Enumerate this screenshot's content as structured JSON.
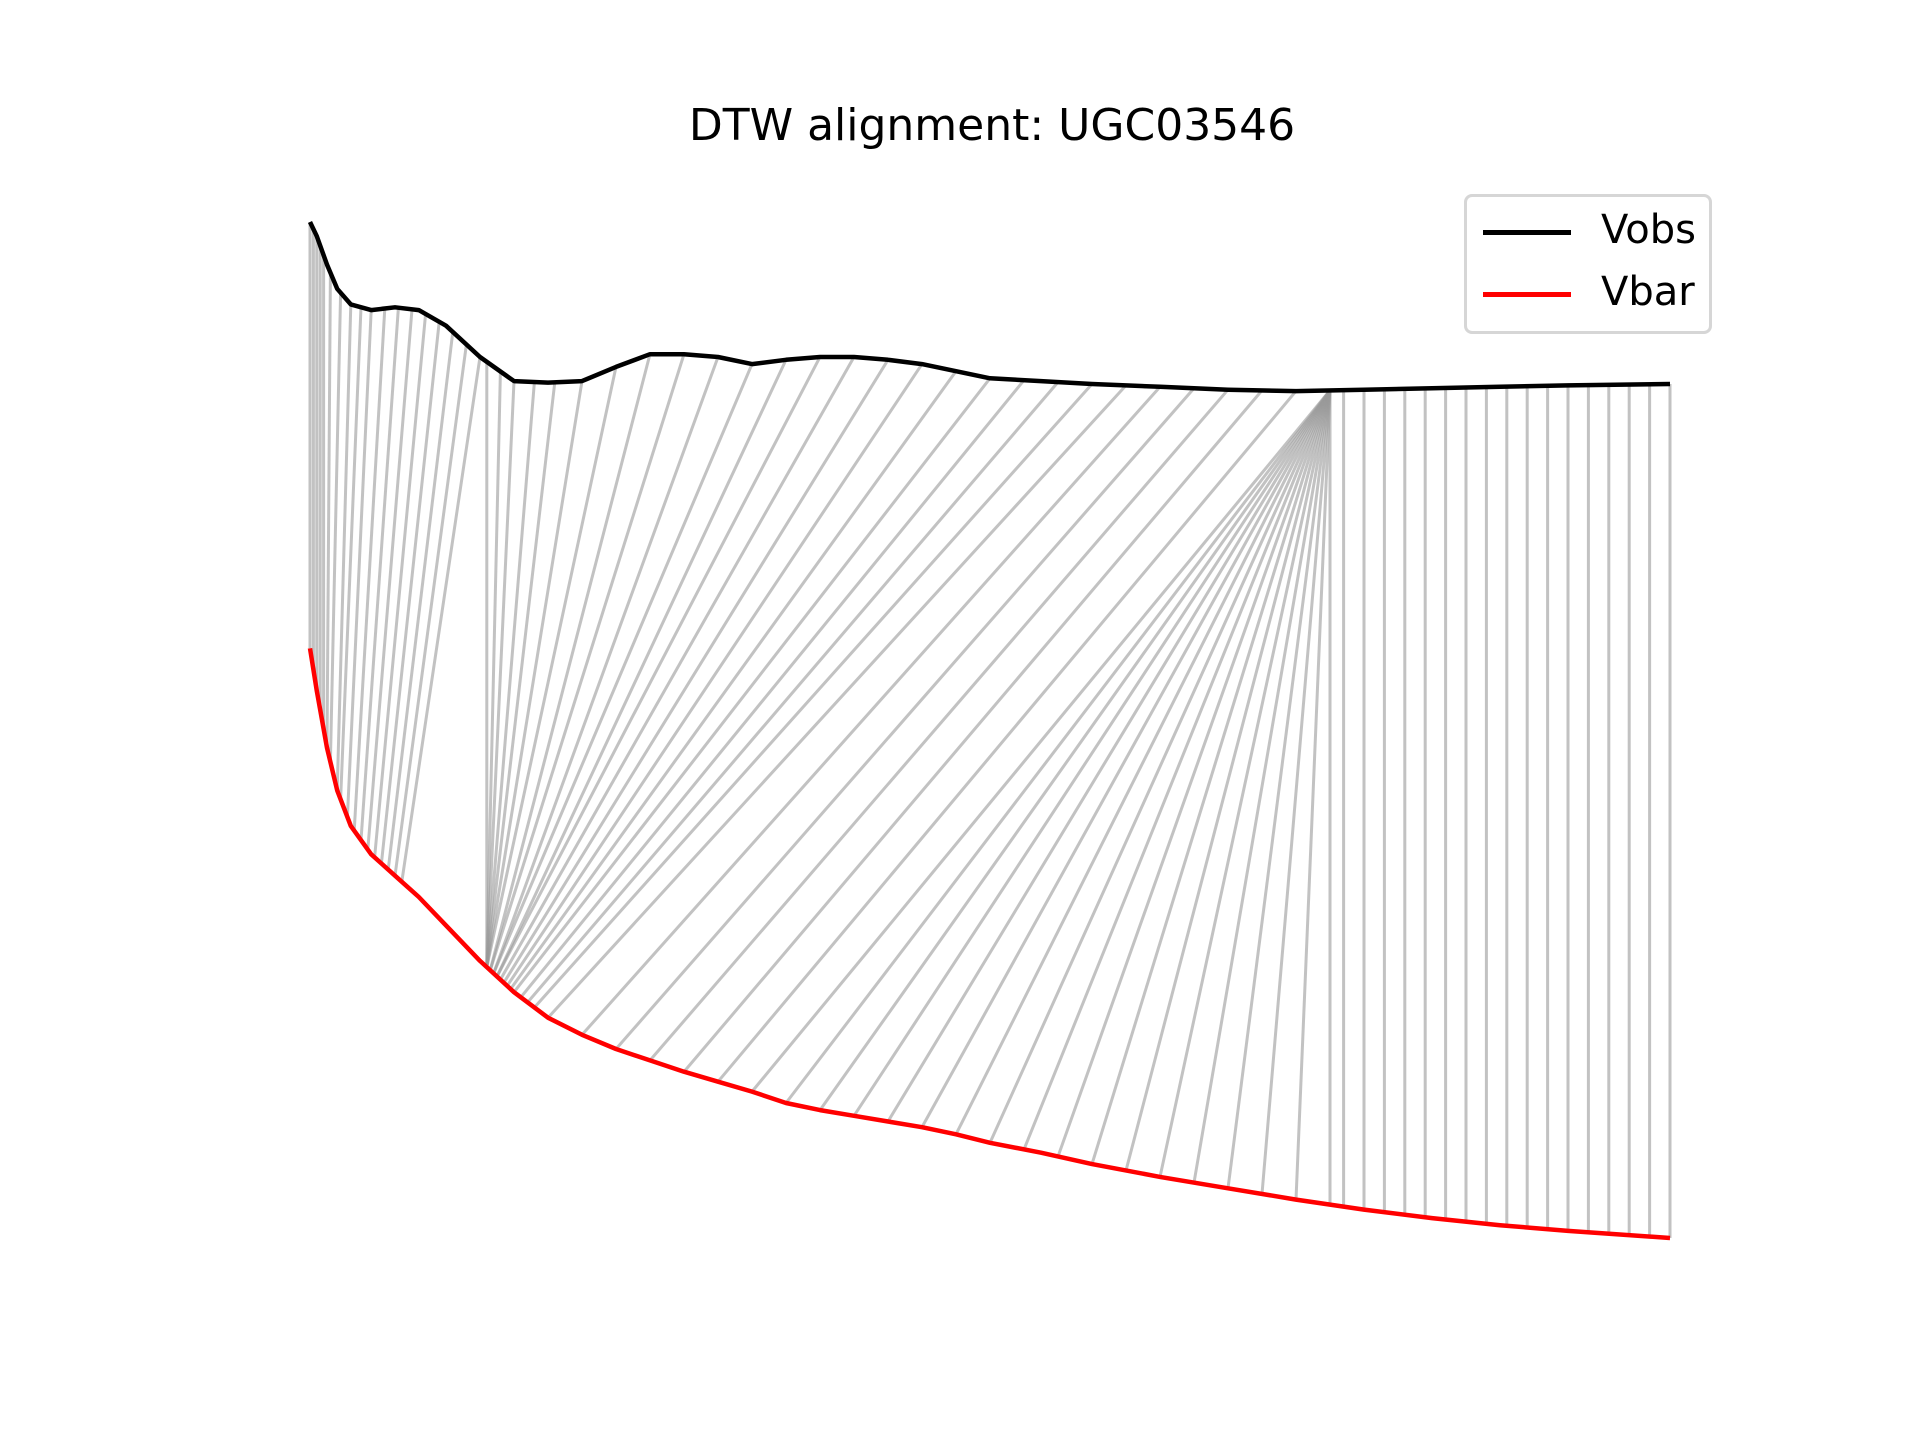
{
  "chart_data": {
    "type": "line",
    "title": "DTW alignment: UGC03546",
    "axes_visible": false,
    "grid": false,
    "legend_position": "top-right",
    "series": [
      {
        "name": "Vobs",
        "color": "#000000",
        "x": [
          0,
          2,
          5,
          8,
          12,
          18,
          25,
          32,
          40,
          50,
          60,
          70,
          80,
          90,
          100,
          110,
          120,
          130,
          140,
          150,
          160,
          170,
          180,
          190,
          200,
          215,
          230,
          250,
          270,
          290,
          310,
          330,
          350,
          370,
          400
        ],
        "y": [
          0.0,
          -0.1,
          -0.3,
          -0.47,
          -0.58,
          -0.62,
          -0.6,
          -0.62,
          -0.73,
          -0.95,
          -1.12,
          -1.13,
          -1.12,
          -1.02,
          -0.93,
          -0.93,
          -0.95,
          -1.0,
          -0.97,
          -0.95,
          -0.95,
          -0.97,
          -1.0,
          -1.05,
          -1.1,
          -1.12,
          -1.14,
          -1.16,
          -1.18,
          -1.19,
          -1.18,
          -1.17,
          -1.16,
          -1.15,
          -1.14
        ]
      },
      {
        "name": "Vbar",
        "color": "#ff0000",
        "x": [
          0,
          2,
          5,
          8,
          12,
          18,
          25,
          32,
          40,
          50,
          60,
          70,
          80,
          90,
          100,
          110,
          120,
          130,
          140,
          150,
          160,
          170,
          180,
          190,
          200,
          215,
          230,
          250,
          270,
          290,
          310,
          330,
          350,
          370,
          400
        ],
        "y": [
          -3.0,
          -3.3,
          -3.7,
          -4.0,
          -4.25,
          -4.45,
          -4.6,
          -4.75,
          -4.95,
          -5.2,
          -5.42,
          -5.6,
          -5.72,
          -5.82,
          -5.9,
          -5.98,
          -6.05,
          -6.12,
          -6.2,
          -6.25,
          -6.29,
          -6.33,
          -6.37,
          -6.42,
          -6.48,
          -6.55,
          -6.63,
          -6.72,
          -6.8,
          -6.88,
          -6.95,
          -7.01,
          -7.06,
          -7.1,
          -7.15
        ]
      }
    ],
    "alignment_path": [
      [
        0,
        0
      ],
      [
        1,
        1
      ],
      [
        2,
        2
      ],
      [
        3,
        3
      ],
      [
        4,
        4
      ],
      [
        6,
        5
      ],
      [
        9,
        6
      ],
      [
        12,
        8
      ],
      [
        15,
        9
      ],
      [
        18,
        11
      ],
      [
        22,
        13
      ],
      [
        26,
        15
      ],
      [
        30,
        17
      ],
      [
        34,
        19
      ],
      [
        38,
        21
      ],
      [
        42,
        23
      ],
      [
        46,
        25
      ],
      [
        50,
        27
      ],
      [
        52,
        52
      ],
      [
        56,
        52
      ],
      [
        60,
        52
      ],
      [
        66,
        52
      ],
      [
        72,
        52
      ],
      [
        80,
        52
      ],
      [
        90,
        52
      ],
      [
        100,
        53
      ],
      [
        110,
        53
      ],
      [
        120,
        54
      ],
      [
        130,
        54
      ],
      [
        140,
        55
      ],
      [
        150,
        55
      ],
      [
        160,
        56
      ],
      [
        170,
        57
      ],
      [
        180,
        58
      ],
      [
        190,
        59
      ],
      [
        200,
        60
      ],
      [
        210,
        62
      ],
      [
        220,
        64
      ],
      [
        230,
        66
      ],
      [
        240,
        70
      ],
      [
        250,
        80
      ],
      [
        260,
        90
      ],
      [
        270,
        100
      ],
      [
        280,
        110
      ],
      [
        290,
        120
      ],
      [
        300,
        130
      ],
      [
        300,
        140
      ],
      [
        300,
        150
      ],
      [
        300,
        160
      ],
      [
        300,
        170
      ],
      [
        300,
        180
      ],
      [
        300,
        190
      ],
      [
        300,
        200
      ],
      [
        300,
        210
      ],
      [
        300,
        220
      ],
      [
        300,
        230
      ],
      [
        300,
        240
      ],
      [
        300,
        250
      ],
      [
        300,
        260
      ],
      [
        300,
        270
      ],
      [
        300,
        280
      ],
      [
        300,
        290
      ],
      [
        300,
        300
      ],
      [
        304,
        304
      ],
      [
        310,
        310
      ],
      [
        316,
        316
      ],
      [
        322,
        322
      ],
      [
        328,
        328
      ],
      [
        334,
        334
      ],
      [
        340,
        340
      ],
      [
        346,
        346
      ],
      [
        352,
        352
      ],
      [
        358,
        358
      ],
      [
        364,
        364
      ],
      [
        370,
        370
      ],
      [
        376,
        376
      ],
      [
        382,
        382
      ],
      [
        388,
        388
      ],
      [
        394,
        394
      ],
      [
        400,
        400
      ]
    ]
  }
}
